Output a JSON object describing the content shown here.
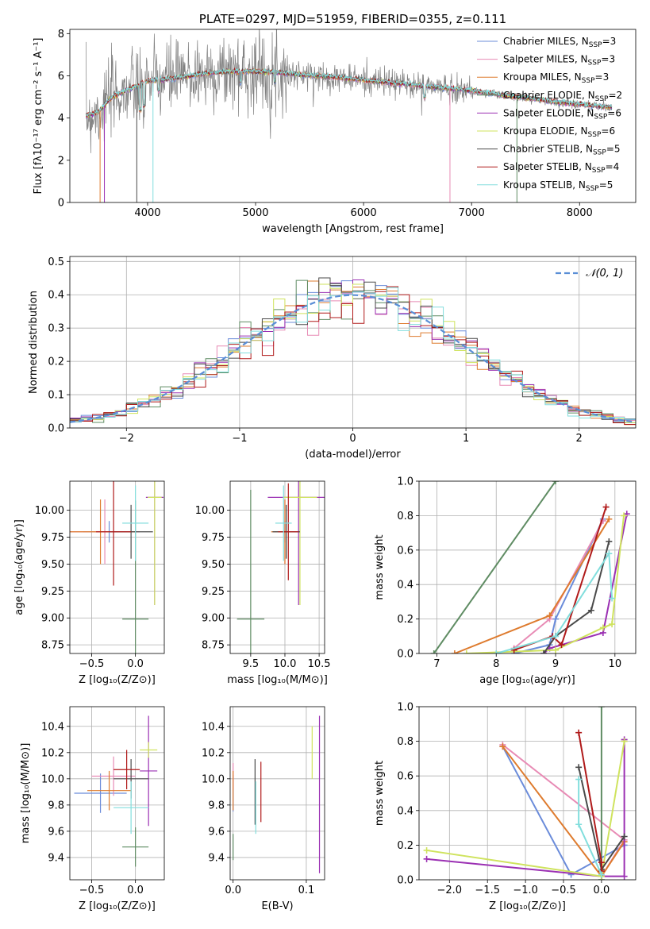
{
  "chart_data": [
    {
      "type": "line",
      "title": "PLATE=0297, MJD=51959, FIBERID=0355, z=0.111",
      "xlabel": "wavelength [Angstrom, rest frame]",
      "ylabel": "Flux [fλ10⁻¹⁷ erg cm⁻² s⁻¹ A⁻¹]",
      "xlim": [
        3280,
        8520
      ],
      "ylim": [
        0,
        8.2
      ],
      "xticks": [
        "4000",
        "5000",
        "6000",
        "7000",
        "8000"
      ],
      "yticks": [
        "0",
        "2",
        "4",
        "6",
        "8"
      ],
      "legend": "top-right",
      "series": [
        {
          "name": "Chabrier MILES, N_SSP=3",
          "color": "#6b8cda"
        },
        {
          "name": "Salpeter MILES, N_SSP=3",
          "color": "#e88bb5"
        },
        {
          "name": "Kroupa MILES, N_SSP=3",
          "color": "#de7b2e"
        },
        {
          "name": "Chabrier ELODIE, N_SSP=2",
          "color": "#5f8c63"
        },
        {
          "name": "Salpeter ELODIE, N_SSP=6",
          "color": "#9b30b3"
        },
        {
          "name": "Kroupa ELODIE, N_SSP=6",
          "color": "#cfe35e"
        },
        {
          "name": "Chabrier STELIB, N_SSP=5",
          "color": "#4a4a4a"
        },
        {
          "name": "Salpeter STELIB, N_SSP=4",
          "color": "#b01a1a"
        },
        {
          "name": "Kroupa STELIB, N_SSP=5",
          "color": "#82dedd"
        }
      ],
      "observed_color": "#808080",
      "continuum_points": [
        [
          3430,
          4.1
        ],
        [
          3550,
          4.3
        ],
        [
          3650,
          4.9
        ],
        [
          3750,
          5.2
        ],
        [
          3850,
          5.4
        ],
        [
          4000,
          5.75
        ],
        [
          4200,
          5.85
        ],
        [
          4400,
          6.0
        ],
        [
          4600,
          6.15
        ],
        [
          4800,
          6.2
        ],
        [
          5000,
          6.2
        ],
        [
          5200,
          6.15
        ],
        [
          5400,
          6.05
        ],
        [
          5600,
          6.0
        ],
        [
          5800,
          5.9
        ],
        [
          6000,
          5.8
        ],
        [
          6200,
          5.7
        ],
        [
          6400,
          5.6
        ],
        [
          6600,
          5.5
        ],
        [
          6800,
          5.4
        ],
        [
          7000,
          5.3
        ],
        [
          7200,
          5.15
        ],
        [
          7400,
          5.0
        ],
        [
          7600,
          4.9
        ],
        [
          7800,
          4.75
        ],
        [
          8000,
          4.65
        ],
        [
          8200,
          4.55
        ],
        [
          8300,
          4.5
        ]
      ]
    },
    {
      "type": "step",
      "xlabel": "(data-model)/error",
      "ylabel": "Normed distribution",
      "xlim": [
        -2.5,
        2.5
      ],
      "ylim": [
        0,
        0.515
      ],
      "xticks": [
        "−2",
        "−1",
        "0",
        "1",
        "2"
      ],
      "yticks": [
        "0.0",
        "0.1",
        "0.2",
        "0.3",
        "0.4",
        "0.5"
      ],
      "legend": "top-right",
      "reference": {
        "name": "𝒩(0, 1)",
        "mean": 0,
        "sd": 1,
        "color": "#5a8ed6"
      },
      "bin_width": 0.1,
      "grid": true
    },
    {
      "type": "errorbar",
      "xlabel": "Z [log₁₀(Z/Z⊙)]",
      "ylabel": "age  [log₁₀(age/yr)]",
      "xlim": [
        -0.75,
        0.33
      ],
      "ylim": [
        8.67,
        10.27
      ],
      "xticks": [
        "−0.5",
        "0.0"
      ],
      "yticks": [
        "8.75",
        "9.00",
        "9.25",
        "9.50",
        "9.75",
        "10.00"
      ],
      "points": [
        {
          "x": -0.3,
          "xerr": 0.3,
          "y": 9.8,
          "yerr": 0.1,
          "color": "#6b8cda"
        },
        {
          "x": -0.35,
          "xerr": 0.4,
          "y": 9.8,
          "yerr": 0.3,
          "color": "#e88bb5"
        },
        {
          "x": -0.4,
          "xerr": 0.4,
          "y": 9.8,
          "yerr": 0.3,
          "color": "#de7b2e"
        },
        {
          "x": 0.0,
          "xerr": 0.15,
          "y": 8.99,
          "yerr": 1.1,
          "color": "#5f8c63"
        },
        {
          "x": 0.22,
          "xerr": 0.1,
          "y": 10.12,
          "yerr": 1.0,
          "color": "#9b30b3"
        },
        {
          "x": 0.22,
          "xerr": 0.08,
          "y": 10.12,
          "yerr": 1.0,
          "color": "#cfe35e"
        },
        {
          "x": -0.05,
          "xerr": 0.25,
          "y": 9.8,
          "yerr": 0.25,
          "color": "#4a4a4a"
        },
        {
          "x": -0.25,
          "xerr": 0.2,
          "y": 9.8,
          "yerr": 0.5,
          "color": "#b01a1a"
        },
        {
          "x": 0.0,
          "xerr": 0.15,
          "y": 9.88,
          "yerr": 0.35,
          "color": "#82dedd"
        }
      ]
    },
    {
      "type": "errorbar",
      "xlabel": "mass [log₁₀(M/M⊙)]",
      "xlim": [
        9.2,
        10.58
      ],
      "ylim": [
        8.67,
        10.27
      ],
      "xticks": [
        "9.5",
        "10.0",
        "10.5"
      ],
      "yticks": [
        "8.75",
        "9.00",
        "9.25",
        "9.50",
        "9.75",
        "10.00"
      ],
      "points": [
        {
          "x": 10.0,
          "xerr": 0.15,
          "y": 9.8,
          "yerr": 0.1,
          "color": "#6b8cda"
        },
        {
          "x": 10.0,
          "xerr": 0.15,
          "y": 9.8,
          "yerr": 0.3,
          "color": "#e88bb5"
        },
        {
          "x": 10.0,
          "xerr": 0.2,
          "y": 9.8,
          "yerr": 0.3,
          "color": "#de7b2e"
        },
        {
          "x": 9.5,
          "xerr": 0.2,
          "y": 8.99,
          "yerr": 1.2,
          "color": "#5f8c63"
        },
        {
          "x": 10.2,
          "xerr": 0.45,
          "y": 10.12,
          "yerr": 1.0,
          "color": "#9b30b3"
        },
        {
          "x": 10.22,
          "xerr": 0.25,
          "y": 10.12,
          "yerr": 1.0,
          "color": "#cfe35e"
        },
        {
          "x": 10.02,
          "xerr": 0.2,
          "y": 9.8,
          "yerr": 0.25,
          "color": "#4a4a4a"
        },
        {
          "x": 10.05,
          "xerr": 0.15,
          "y": 9.8,
          "yerr": 0.45,
          "color": "#b01a1a"
        },
        {
          "x": 9.98,
          "xerr": 0.12,
          "y": 9.88,
          "yerr": 0.35,
          "color": "#82dedd"
        }
      ]
    },
    {
      "type": "line",
      "xlabel": "age  [log₁₀(age/yr)]",
      "ylabel": "mass weight",
      "xlim": [
        6.7,
        10.35
      ],
      "ylim": [
        0,
        1.0
      ],
      "xticks": [
        "7",
        "8",
        "9",
        "10"
      ],
      "yticks": [
        "0.0",
        "0.2",
        "0.4",
        "0.6",
        "0.8",
        "1.0"
      ],
      "series": [
        {
          "color": "#6b8cda",
          "points": [
            [
              8.3,
              0.0
            ],
            [
              8.9,
              0.05
            ],
            [
              9.0,
              0.2
            ],
            [
              9.8,
              0.78
            ]
          ]
        },
        {
          "color": "#e88bb5",
          "points": [
            [
              8.3,
              0.03
            ],
            [
              8.9,
              0.2
            ],
            [
              9.8,
              0.77
            ]
          ]
        },
        {
          "color": "#de7b2e",
          "points": [
            [
              7.3,
              0.0
            ],
            [
              8.9,
              0.22
            ],
            [
              9.9,
              0.78
            ]
          ]
        },
        {
          "color": "#5f8c63",
          "points": [
            [
              6.95,
              0.0
            ],
            [
              9.0,
              1.0
            ]
          ]
        },
        {
          "color": "#9b30b3",
          "points": [
            [
              8.8,
              0.0
            ],
            [
              8.9,
              0.03
            ],
            [
              9.8,
              0.12
            ],
            [
              10.2,
              0.81
            ]
          ]
        },
        {
          "color": "#cfe35e",
          "points": [
            [
              7.5,
              0.0
            ],
            [
              9.0,
              0.02
            ],
            [
              9.8,
              0.15
            ],
            [
              9.95,
              0.17
            ],
            [
              10.15,
              0.8
            ]
          ]
        },
        {
          "color": "#4a4a4a",
          "points": [
            [
              8.8,
              0.0
            ],
            [
              9.0,
              0.1
            ],
            [
              9.6,
              0.25
            ],
            [
              9.9,
              0.65
            ]
          ]
        },
        {
          "color": "#b01a1a",
          "points": [
            [
              8.3,
              0.02
            ],
            [
              8.95,
              0.1
            ],
            [
              9.1,
              0.05
            ],
            [
              9.85,
              0.85
            ]
          ]
        },
        {
          "color": "#82dedd",
          "points": [
            [
              8.0,
              0.0
            ],
            [
              9.0,
              0.1
            ],
            [
              9.9,
              0.58
            ],
            [
              9.95,
              0.32
            ]
          ]
        }
      ]
    },
    {
      "type": "errorbar",
      "xlabel": "Z [log₁₀(Z/Z⊙)]",
      "ylabel": "mass [log₁₀(M/M⊙)]",
      "xlim": [
        -0.75,
        0.33
      ],
      "ylim": [
        9.23,
        10.55
      ],
      "xticks": [
        "−0.5",
        "0.0"
      ],
      "yticks": [
        "9.4",
        "9.6",
        "9.8",
        "10.0",
        "10.2",
        "10.4"
      ],
      "points": [
        {
          "x": -0.4,
          "xerr": 0.3,
          "y": 9.89,
          "yerr": 0.15,
          "color": "#6b8cda"
        },
        {
          "x": -0.25,
          "xerr": 0.25,
          "y": 10.02,
          "yerr": 0.15,
          "color": "#e88bb5"
        },
        {
          "x": -0.3,
          "xerr": 0.25,
          "y": 9.91,
          "yerr": 0.15,
          "color": "#de7b2e"
        },
        {
          "x": 0.0,
          "xerr": 0.15,
          "y": 9.48,
          "yerr": 0.15,
          "color": "#5f8c63"
        },
        {
          "x": 0.15,
          "xerr": 0.1,
          "y": 10.06,
          "yerr": 0.42,
          "color": "#9b30b3"
        },
        {
          "x": 0.15,
          "xerr": 0.1,
          "y": 10.22,
          "yerr": 0.06,
          "color": "#cfe35e"
        },
        {
          "x": -0.05,
          "xerr": 0.2,
          "y": 10.0,
          "yerr": 0.15,
          "color": "#4a4a4a"
        },
        {
          "x": -0.1,
          "xerr": 0.15,
          "y": 10.07,
          "yerr": 0.15,
          "color": "#b01a1a"
        },
        {
          "x": -0.05,
          "xerr": 0.2,
          "y": 9.78,
          "yerr": 0.2,
          "color": "#82dedd"
        }
      ]
    },
    {
      "type": "errorbar",
      "xlabel": "E(B-V)",
      "xlim": [
        -0.004,
        0.125
      ],
      "ylim": [
        9.23,
        10.55
      ],
      "xticks": [
        "0.0",
        "0.1"
      ],
      "yticks": [
        "9.4",
        "9.6",
        "9.8",
        "10.0",
        "10.2",
        "10.4"
      ],
      "points": [
        {
          "x": 0.0,
          "y": 9.89,
          "yerr": 0.14,
          "color": "#6b8cda"
        },
        {
          "x": 0.0,
          "y": 10.02,
          "yerr": 0.1,
          "color": "#e88bb5"
        },
        {
          "x": 0.0,
          "y": 9.91,
          "yerr": 0.15,
          "color": "#de7b2e"
        },
        {
          "x": 0.0,
          "y": 9.48,
          "yerr": 0.1,
          "color": "#5f8c63"
        },
        {
          "x": 0.118,
          "y": 9.88,
          "yerr": 0.6,
          "color": "#9b30b3"
        },
        {
          "x": 0.108,
          "y": 10.2,
          "yerr": 0.2,
          "color": "#cfe35e"
        },
        {
          "x": 0.03,
          "y": 9.9,
          "yerr": 0.25,
          "color": "#4a4a4a"
        },
        {
          "x": 0.038,
          "y": 9.9,
          "yerr": 0.23,
          "color": "#b01a1a"
        },
        {
          "x": 0.031,
          "y": 9.78,
          "yerr": 0.2,
          "color": "#82dedd"
        }
      ]
    },
    {
      "type": "line",
      "xlabel": "Z [log₁₀(Z/Z⊙)]",
      "ylabel": "mass weight",
      "xlim": [
        -2.4,
        0.45
      ],
      "ylim": [
        0,
        1.0
      ],
      "xticks": [
        "−2.0",
        "−1.5",
        "−1.0",
        "−0.5",
        "0.0"
      ],
      "yticks": [
        "0.0",
        "0.2",
        "0.4",
        "0.6",
        "0.8",
        "1.0"
      ],
      "series": [
        {
          "color": "#6b8cda",
          "points": [
            [
              -1.3,
              0.77
            ],
            [
              -0.4,
              0.03
            ],
            [
              0.3,
              0.2
            ]
          ]
        },
        {
          "color": "#e88bb5",
          "points": [
            [
              -1.3,
              0.78
            ],
            [
              0.3,
              0.23
            ],
            [
              0.0,
              0.02
            ]
          ]
        },
        {
          "color": "#de7b2e",
          "points": [
            [
              -1.3,
              0.77
            ],
            [
              0.0,
              0.02
            ],
            [
              0.3,
              0.22
            ]
          ]
        },
        {
          "color": "#5f8c63",
          "points": [
            [
              0.0,
              0.0
            ],
            [
              0.0,
              1.0
            ]
          ]
        },
        {
          "color": "#9b30b3",
          "points": [
            [
              -2.3,
              0.12
            ],
            [
              0.0,
              0.02
            ],
            [
              0.3,
              0.02
            ],
            [
              0.3,
              0.81
            ]
          ]
        },
        {
          "color": "#cfe35e",
          "points": [
            [
              -2.3,
              0.17
            ],
            [
              0.0,
              0.02
            ],
            [
              0.3,
              0.8
            ]
          ]
        },
        {
          "color": "#4a4a4a",
          "points": [
            [
              -0.3,
              0.65
            ],
            [
              0.0,
              0.06
            ],
            [
              0.3,
              0.25
            ]
          ]
        },
        {
          "color": "#b01a1a",
          "points": [
            [
              -0.3,
              0.85
            ],
            [
              0.0,
              0.1
            ],
            [
              0.0,
              0.05
            ]
          ]
        },
        {
          "color": "#82dedd",
          "points": [
            [
              -0.3,
              0.58
            ],
            [
              -0.3,
              0.32
            ],
            [
              0.0,
              0.03
            ]
          ]
        }
      ]
    }
  ]
}
